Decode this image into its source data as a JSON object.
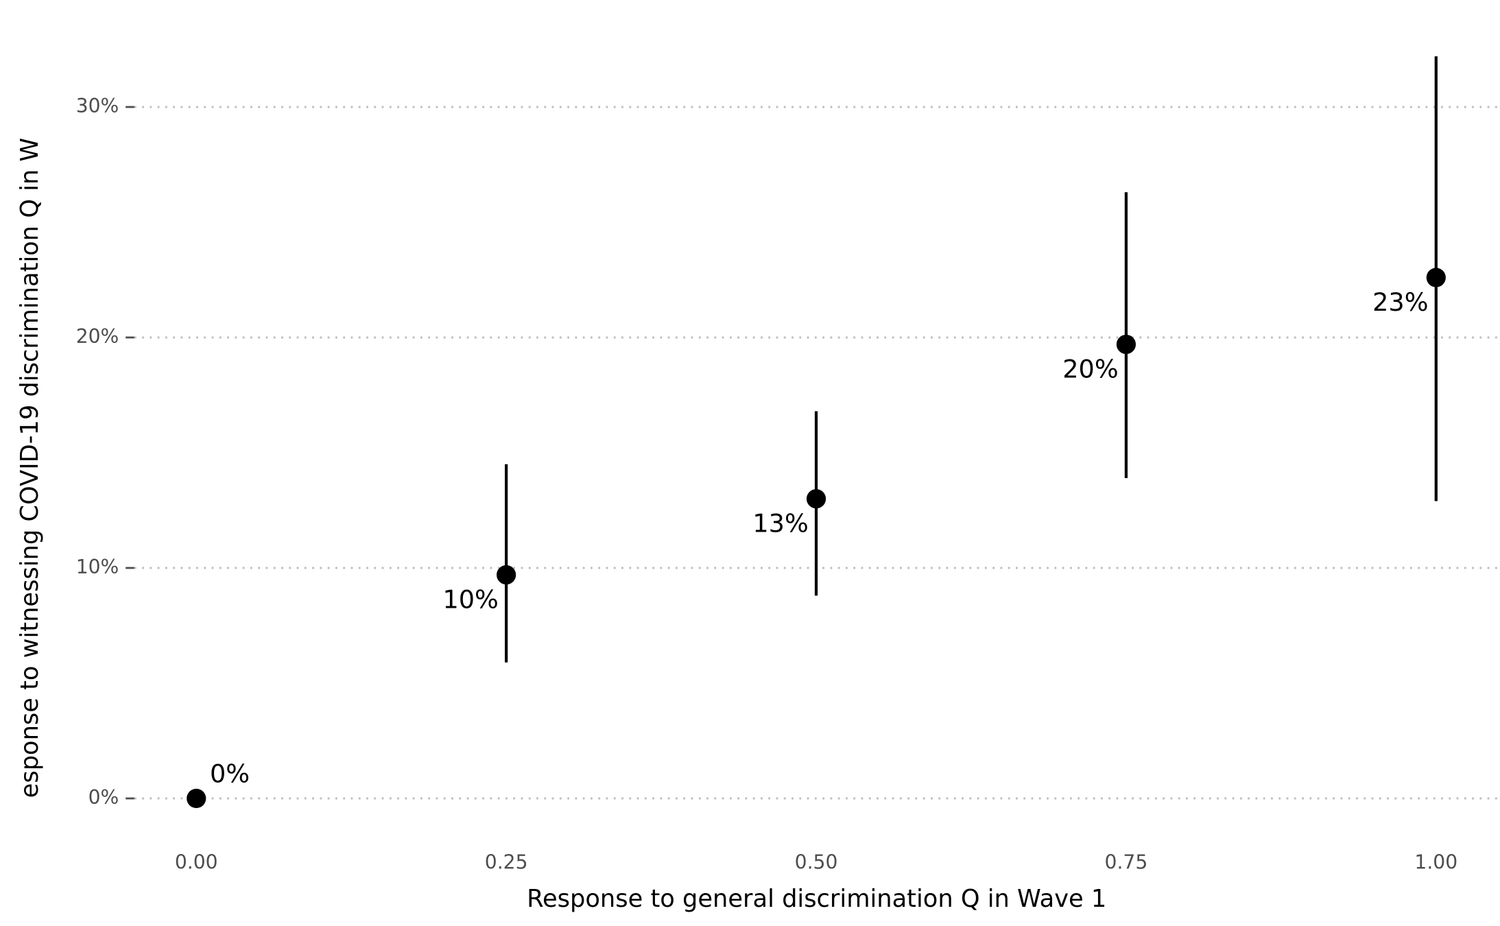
{
  "chart_data": {
    "type": "pointrange",
    "x_label": "Response to general discrimination Q in Wave 1",
    "y_label": "esponse to witnessing COVID-19 discrimination Q in W",
    "x": [
      0,
      0.25,
      0.5,
      0.75,
      1
    ],
    "values": [
      0,
      9.7,
      13.0,
      19.7,
      22.6
    ],
    "value_labels": [
      "0%",
      "10%",
      "13%",
      "20%",
      "23%"
    ],
    "lower": [
      null,
      5.9,
      8.8,
      13.9,
      12.9
    ],
    "upper": [
      null,
      14.5,
      16.8,
      26.3,
      32.2
    ],
    "color": "#000000",
    "xlim": [
      -0.05,
      1.05
    ],
    "ylim": [
      -1.4,
      34.6
    ],
    "xticks": [
      {
        "value": 0,
        "label": "0.00"
      },
      {
        "value": 0.25,
        "label": "0.25"
      },
      {
        "value": 0.5,
        "label": "0.50"
      },
      {
        "value": 0.75,
        "label": "0.75"
      },
      {
        "value": 1,
        "label": "1.00"
      }
    ],
    "yticks": [
      {
        "value": 0,
        "label": "0%"
      },
      {
        "value": 10,
        "label": "10%"
      },
      {
        "value": 20,
        "label": "20%"
      },
      {
        "value": 30,
        "label": "30%"
      }
    ],
    "grid": "y"
  }
}
